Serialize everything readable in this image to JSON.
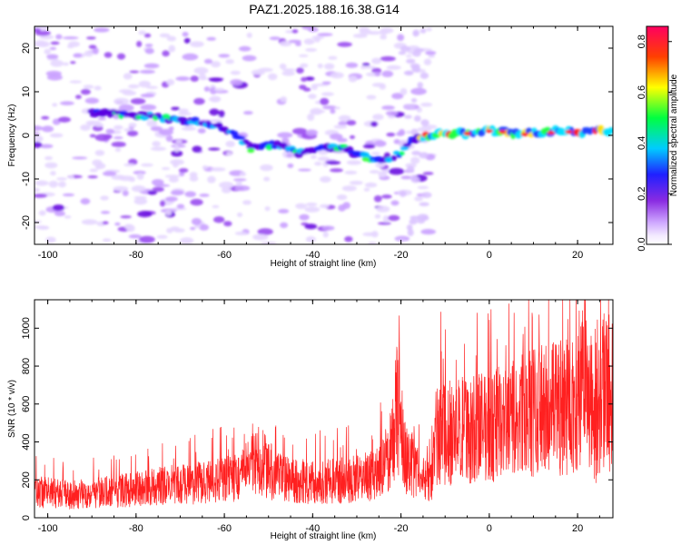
{
  "title": "PAZ1.2025.188.16.38.G14",
  "chart_data": [
    {
      "type": "heatmap",
      "xlabel": "Height of straight line (km)",
      "ylabel": "Frequency (Hz)",
      "xlim": [
        -103,
        28
      ],
      "ylim": [
        -25,
        25
      ],
      "x_ticks": [
        -100,
        -80,
        -60,
        -40,
        -20,
        0,
        20
      ],
      "y_ticks": [
        -20,
        -10,
        0,
        10,
        20
      ],
      "colorbar": {
        "label": "Normalized spectral amplitude",
        "ticks": [
          0.0,
          0.2,
          0.4,
          0.6,
          0.8
        ],
        "tick_labels": [
          "0.0",
          "0.2",
          "0.4",
          "0.6",
          "0.8"
        ],
        "range": [
          0,
          0.86
        ],
        "colors": [
          "#ffffff",
          "#cfa8ff",
          "#8a2be2",
          "#2020ff",
          "#00ccff",
          "#00ff40",
          "#ffff00",
          "#ff4000",
          "#ff0060"
        ]
      },
      "ridge": {
        "x": [
          -88,
          -78,
          -70,
          -65,
          -58,
          -54,
          -48,
          -43,
          -38,
          -33,
          -28,
          -24,
          -20,
          -17,
          -14,
          -10,
          -5,
          0,
          5,
          10,
          15,
          20,
          25,
          28
        ],
        "y": [
          5,
          4.5,
          3.5,
          3,
          1,
          -3,
          -2,
          -4,
          -3,
          -3,
          -5,
          -6,
          -4,
          -1,
          0,
          0.5,
          0.5,
          1,
          0.5,
          0.5,
          1,
          0.5,
          1,
          1
        ]
      }
    },
    {
      "type": "line",
      "xlabel": "Height of straight line (km)",
      "ylabel": "SNR (10 * v/v)",
      "xlim": [
        -103,
        28
      ],
      "ylim": [
        0,
        1150
      ],
      "x_ticks": [
        -100,
        -80,
        -60,
        -40,
        -20,
        0,
        20
      ],
      "y_ticks": [
        0,
        200,
        400,
        600,
        800,
        1000
      ],
      "color": "#ff2020",
      "trend": {
        "x": [
          -103,
          -95,
          -85,
          -75,
          -65,
          -57,
          -52,
          -48,
          -40,
          -30,
          -25,
          -22,
          -21,
          -19,
          -15,
          -13,
          -12,
          -10,
          -5,
          0,
          5,
          10,
          15,
          20,
          22,
          24,
          26,
          28
        ],
        "y": [
          150,
          130,
          150,
          180,
          200,
          230,
          330,
          230,
          200,
          220,
          250,
          400,
          650,
          350,
          220,
          250,
          470,
          480,
          500,
          520,
          550,
          600,
          620,
          650,
          800,
          500,
          750,
          600
        ]
      }
    }
  ]
}
